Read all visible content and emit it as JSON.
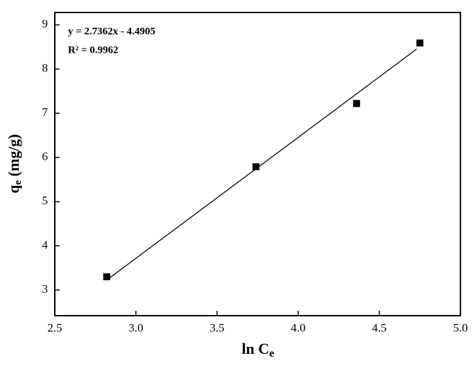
{
  "chart_data": {
    "type": "scatter",
    "x": [
      2.82,
      3.74,
      4.36,
      4.75
    ],
    "values": [
      3.3,
      5.79,
      7.22,
      8.59
    ],
    "color": "#000000",
    "xlabel": "ln C",
    "xlabel_sub": "e",
    "ylabel": "q",
    "ylabel_sub": "e",
    "ylabel_unit": " (mg/g)",
    "xlim": [
      2.5,
      5.0
    ],
    "xticks": [
      2.5,
      {
        "value": 3,
        "label": "3.0"
      },
      3.5,
      {
        "value": 4,
        "label": "4.0"
      },
      4.5,
      {
        "value": 5,
        "label": "5.0"
      }
    ],
    "ylim": [
      2.42,
      9.28
    ],
    "yticks": [
      3,
      4,
      5,
      6,
      7,
      8,
      9
    ],
    "fit_line": {
      "slope": 2.7362,
      "intercept": -4.4905,
      "x": [
        2.84,
        4.73
      ]
    },
    "annotations": [
      "y = 2.7362x - 4.4905",
      "R² = 0.9962"
    ]
  }
}
